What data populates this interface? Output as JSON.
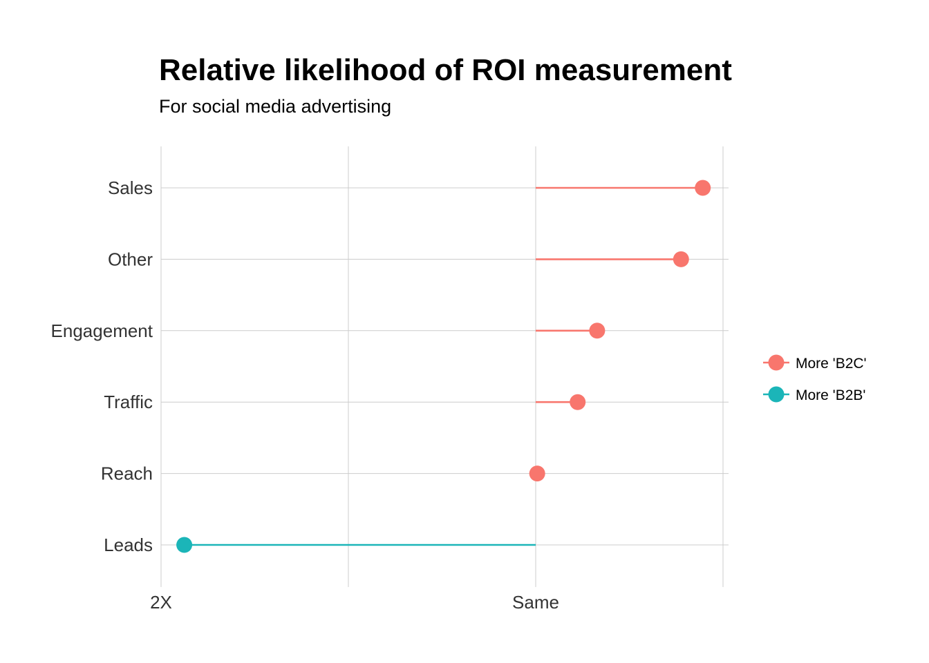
{
  "chart_data": {
    "type": "lollipop",
    "title": "Relative likelihood of ROI measurement",
    "subtitle": "For social media advertising",
    "xlabel": "",
    "ylabel": "",
    "x_ticks": [
      {
        "value": 0.5,
        "label": "2X"
      },
      {
        "value": 1.0,
        "label": "Same"
      }
    ],
    "x_grid": [
      0.5,
      0.75,
      1.0,
      1.25
    ],
    "xlim": [
      0.5,
      1.28
    ],
    "baseline": 1.0,
    "categories": [
      "Sales",
      "Other",
      "Engagement",
      "Traffic",
      "Reach",
      "Leads"
    ],
    "values": [
      1.223,
      1.194,
      1.082,
      1.056,
      1.002,
      0.531
    ],
    "groups": [
      "More 'B2C'",
      "More 'B2C'",
      "More 'B2C'",
      "More 'B2C'",
      "More 'B2C'",
      "More 'B2B'"
    ],
    "legend": {
      "position": "right",
      "items": [
        {
          "label": "More 'B2C'",
          "color": "#F8766D"
        },
        {
          "label": "More 'B2B'",
          "color": "#1BB5B8"
        }
      ]
    },
    "grid": true
  }
}
